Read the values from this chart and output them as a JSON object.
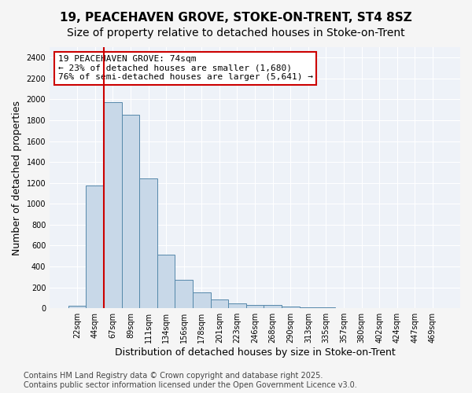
{
  "title": "19, PEACEHAVEN GROVE, STOKE-ON-TRENT, ST4 8SZ",
  "subtitle": "Size of property relative to detached houses in Stoke-on-Trent",
  "xlabel": "Distribution of detached houses by size in Stoke-on-Trent",
  "ylabel": "Number of detached properties",
  "bar_values": [
    25,
    1175,
    1975,
    1850,
    1245,
    515,
    275,
    155,
    85,
    50,
    35,
    30,
    15,
    10,
    8,
    5,
    3,
    2,
    2,
    1,
    1
  ],
  "bar_labels": [
    "22sqm",
    "44sqm",
    "67sqm",
    "89sqm",
    "111sqm",
    "134sqm",
    "156sqm",
    "178sqm",
    "201sqm",
    "223sqm",
    "246sqm",
    "268sqm",
    "290sqm",
    "313sqm",
    "335sqm",
    "357sqm",
    "380sqm",
    "402sqm",
    "424sqm",
    "447sqm",
    "469sqm"
  ],
  "bar_color": "#c8d8e8",
  "bar_edge_color": "#5588aa",
  "vline_color": "#cc0000",
  "vline_x": 1.5,
  "annotation_text": "19 PEACEHAVEN GROVE: 74sqm\n← 23% of detached houses are smaller (1,680)\n76% of semi-detached houses are larger (5,641) →",
  "annotation_box_color": "#ffffff",
  "annotation_box_edge": "#cc0000",
  "ylim": [
    0,
    2500
  ],
  "yticks": [
    0,
    200,
    400,
    600,
    800,
    1000,
    1200,
    1400,
    1600,
    1800,
    2000,
    2200,
    2400
  ],
  "background_color": "#eef2f8",
  "grid_color": "#ffffff",
  "fig_background": "#f5f5f5",
  "footer_text": "Contains HM Land Registry data © Crown copyright and database right 2025.\nContains public sector information licensed under the Open Government Licence v3.0.",
  "title_fontsize": 11,
  "subtitle_fontsize": 10,
  "xlabel_fontsize": 9,
  "ylabel_fontsize": 9,
  "tick_fontsize": 7,
  "annotation_fontsize": 8,
  "footer_fontsize": 7
}
